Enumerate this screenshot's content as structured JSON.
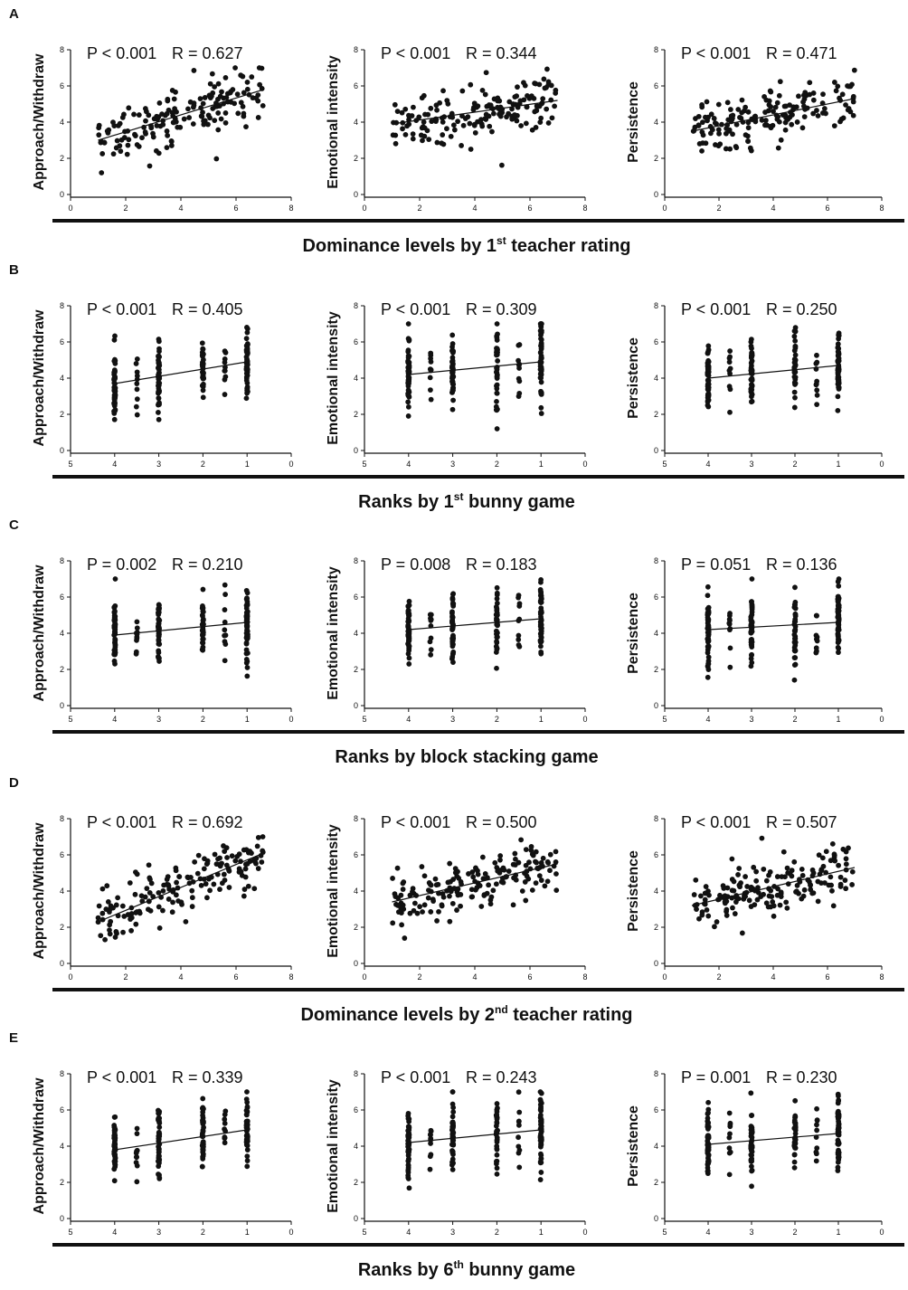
{
  "figure": {
    "rows": [
      {
        "letter": "A",
        "xlabel_main": "Dominance levels by 1",
        "xlabel_sup": "st",
        "xlabel_rest": " teacher rating",
        "x_kind": "continuous",
        "xlim": [
          0,
          8
        ],
        "x_ticks": [
          0,
          2,
          4,
          6,
          8
        ]
      },
      {
        "letter": "B",
        "xlabel_main": "Ranks by 1",
        "xlabel_sup": "st",
        "xlabel_rest": " bunny game",
        "x_kind": "rank",
        "xlim": [
          5,
          0
        ],
        "x_ticks": [
          5,
          4,
          3,
          2,
          1,
          0
        ]
      },
      {
        "letter": "C",
        "xlabel_main": "Ranks by block stacking game",
        "xlabel_sup": "",
        "xlabel_rest": "",
        "x_kind": "rank",
        "xlim": [
          5,
          0
        ],
        "x_ticks": [
          5,
          4,
          3,
          2,
          1,
          0
        ]
      },
      {
        "letter": "D",
        "xlabel_main": "Dominance levels by 2",
        "xlabel_sup": "nd",
        "xlabel_rest": " teacher rating",
        "x_kind": "continuous",
        "xlim": [
          0,
          8
        ],
        "x_ticks": [
          0,
          2,
          4,
          6,
          8
        ]
      },
      {
        "letter": "E",
        "xlabel_main": "Ranks by 6",
        "xlabel_sup": "th",
        "xlabel_rest": " bunny game",
        "x_kind": "rank",
        "xlim": [
          5,
          0
        ],
        "x_ticks": [
          5,
          4,
          3,
          2,
          1,
          0
        ]
      }
    ]
  },
  "chart_data": [
    {
      "type": "scatter",
      "panel": "A",
      "ylabel": "Approach/Withdraw",
      "stat_p": "P < 0.001",
      "stat_r": "R = 0.627",
      "r": 0.627,
      "xlim": [
        0,
        8
      ],
      "ylim": [
        0,
        8
      ],
      "y_ticks": [
        0,
        2,
        4,
        6,
        8
      ],
      "trend": [
        [
          1,
          3.0
        ],
        [
          7,
          5.8
        ]
      ]
    },
    {
      "type": "scatter",
      "panel": "A",
      "ylabel": "Emotional intensity",
      "stat_p": "P < 0.001",
      "stat_r": "R = 0.344",
      "r": 0.344,
      "xlim": [
        0,
        8
      ],
      "ylim": [
        0,
        8
      ],
      "y_ticks": [
        0,
        2,
        4,
        6,
        8
      ],
      "trend": [
        [
          1,
          3.9
        ],
        [
          7,
          5.2
        ]
      ]
    },
    {
      "type": "scatter",
      "panel": "A",
      "ylabel": "Persistence",
      "stat_p": "P < 0.001",
      "stat_r": "R = 0.471",
      "r": 0.471,
      "xlim": [
        0,
        8
      ],
      "ylim": [
        0,
        8
      ],
      "y_ticks": [
        0,
        2,
        4,
        6,
        8
      ],
      "trend": [
        [
          1,
          3.5
        ],
        [
          7,
          5.3
        ]
      ]
    },
    {
      "type": "scatter",
      "panel": "B",
      "ylabel": "Approach/Withdraw",
      "stat_p": "P < 0.001",
      "stat_r": "R = 0.405",
      "r": 0.405,
      "xlim": [
        5,
        0
      ],
      "ylim": [
        0,
        8
      ],
      "y_ticks": [
        0,
        2,
        4,
        6,
        8
      ],
      "trend": [
        [
          4,
          3.7
        ],
        [
          1,
          4.9
        ]
      ]
    },
    {
      "type": "scatter",
      "panel": "B",
      "ylabel": "Emotional intensity",
      "stat_p": "P < 0.001",
      "stat_r": "R = 0.309",
      "r": 0.309,
      "xlim": [
        5,
        0
      ],
      "ylim": [
        0,
        8
      ],
      "y_ticks": [
        0,
        2,
        4,
        6,
        8
      ],
      "trend": [
        [
          4,
          4.2
        ],
        [
          1,
          4.9
        ]
      ]
    },
    {
      "type": "scatter",
      "panel": "B",
      "ylabel": "Persistence",
      "stat_p": "P < 0.001",
      "stat_r": "R = 0.250",
      "r": 0.25,
      "xlim": [
        5,
        0
      ],
      "ylim": [
        0,
        8
      ],
      "y_ticks": [
        0,
        2,
        4,
        6,
        8
      ],
      "trend": [
        [
          4,
          4.0
        ],
        [
          1,
          4.7
        ]
      ]
    },
    {
      "type": "scatter",
      "panel": "C",
      "ylabel": "Approach/Withdraw",
      "stat_p": "P = 0.002",
      "stat_r": "R = 0.210",
      "r": 0.21,
      "xlim": [
        5,
        0
      ],
      "ylim": [
        0,
        8
      ],
      "y_ticks": [
        0,
        2,
        4,
        6,
        8
      ],
      "trend": [
        [
          4,
          3.9
        ],
        [
          1,
          4.6
        ]
      ]
    },
    {
      "type": "scatter",
      "panel": "C",
      "ylabel": "Emotional intensity",
      "stat_p": "P = 0.008",
      "stat_r": "R = 0.183",
      "r": 0.183,
      "xlim": [
        5,
        0
      ],
      "ylim": [
        0,
        8
      ],
      "y_ticks": [
        0,
        2,
        4,
        6,
        8
      ],
      "trend": [
        [
          4,
          4.2
        ],
        [
          1,
          4.8
        ]
      ]
    },
    {
      "type": "scatter",
      "panel": "C",
      "ylabel": "Persistence",
      "stat_p": "P = 0.051",
      "stat_r": "R = 0.136",
      "r": 0.136,
      "xlim": [
        5,
        0
      ],
      "ylim": [
        0,
        8
      ],
      "y_ticks": [
        0,
        2,
        4,
        6,
        8
      ],
      "trend": [
        [
          4,
          4.2
        ],
        [
          1,
          4.6
        ]
      ]
    },
    {
      "type": "scatter",
      "panel": "D",
      "ylabel": "Approach/Withdraw",
      "stat_p": "P < 0.001",
      "stat_r": "R = 0.692",
      "r": 0.692,
      "xlim": [
        0,
        8
      ],
      "ylim": [
        0,
        8
      ],
      "y_ticks": [
        0,
        2,
        4,
        6,
        8
      ],
      "trend": [
        [
          1,
          2.3
        ],
        [
          7,
          6.1
        ]
      ]
    },
    {
      "type": "scatter",
      "panel": "D",
      "ylabel": "Emotional intensity",
      "stat_p": "P < 0.001",
      "stat_r": "R = 0.500",
      "r": 0.5,
      "xlim": [
        0,
        8
      ],
      "ylim": [
        0,
        8
      ],
      "y_ticks": [
        0,
        2,
        4,
        6,
        8
      ],
      "trend": [
        [
          1,
          3.4
        ],
        [
          7,
          5.5
        ]
      ]
    },
    {
      "type": "scatter",
      "panel": "D",
      "ylabel": "Persistence",
      "stat_p": "P < 0.001",
      "stat_r": "R = 0.507",
      "r": 0.507,
      "xlim": [
        0,
        8
      ],
      "ylim": [
        0,
        8
      ],
      "y_ticks": [
        0,
        2,
        4,
        6,
        8
      ],
      "trend": [
        [
          1,
          3.2
        ],
        [
          7,
          5.3
        ]
      ]
    },
    {
      "type": "scatter",
      "panel": "E",
      "ylabel": "Approach/Withdraw",
      "stat_p": "P < 0.001",
      "stat_r": "R = 0.339",
      "r": 0.339,
      "xlim": [
        5,
        0
      ],
      "ylim": [
        0,
        8
      ],
      "y_ticks": [
        0,
        2,
        4,
        6,
        8
      ],
      "trend": [
        [
          4,
          3.8
        ],
        [
          1,
          4.9
        ]
      ]
    },
    {
      "type": "scatter",
      "panel": "E",
      "ylabel": "Emotional intensity",
      "stat_p": "P < 0.001",
      "stat_r": "R = 0.243",
      "r": 0.243,
      "xlim": [
        5,
        0
      ],
      "ylim": [
        0,
        8
      ],
      "y_ticks": [
        0,
        2,
        4,
        6,
        8
      ],
      "trend": [
        [
          4,
          4.2
        ],
        [
          1,
          4.9
        ]
      ]
    },
    {
      "type": "scatter",
      "panel": "E",
      "ylabel": "Persistence",
      "stat_p": "P = 0.001",
      "stat_r": "R = 0.230",
      "r": 0.23,
      "xlim": [
        5,
        0
      ],
      "ylim": [
        0,
        8
      ],
      "y_ticks": [
        0,
        2,
        4,
        6,
        8
      ],
      "trend": [
        [
          4,
          4.1
        ],
        [
          1,
          4.7
        ]
      ]
    }
  ]
}
